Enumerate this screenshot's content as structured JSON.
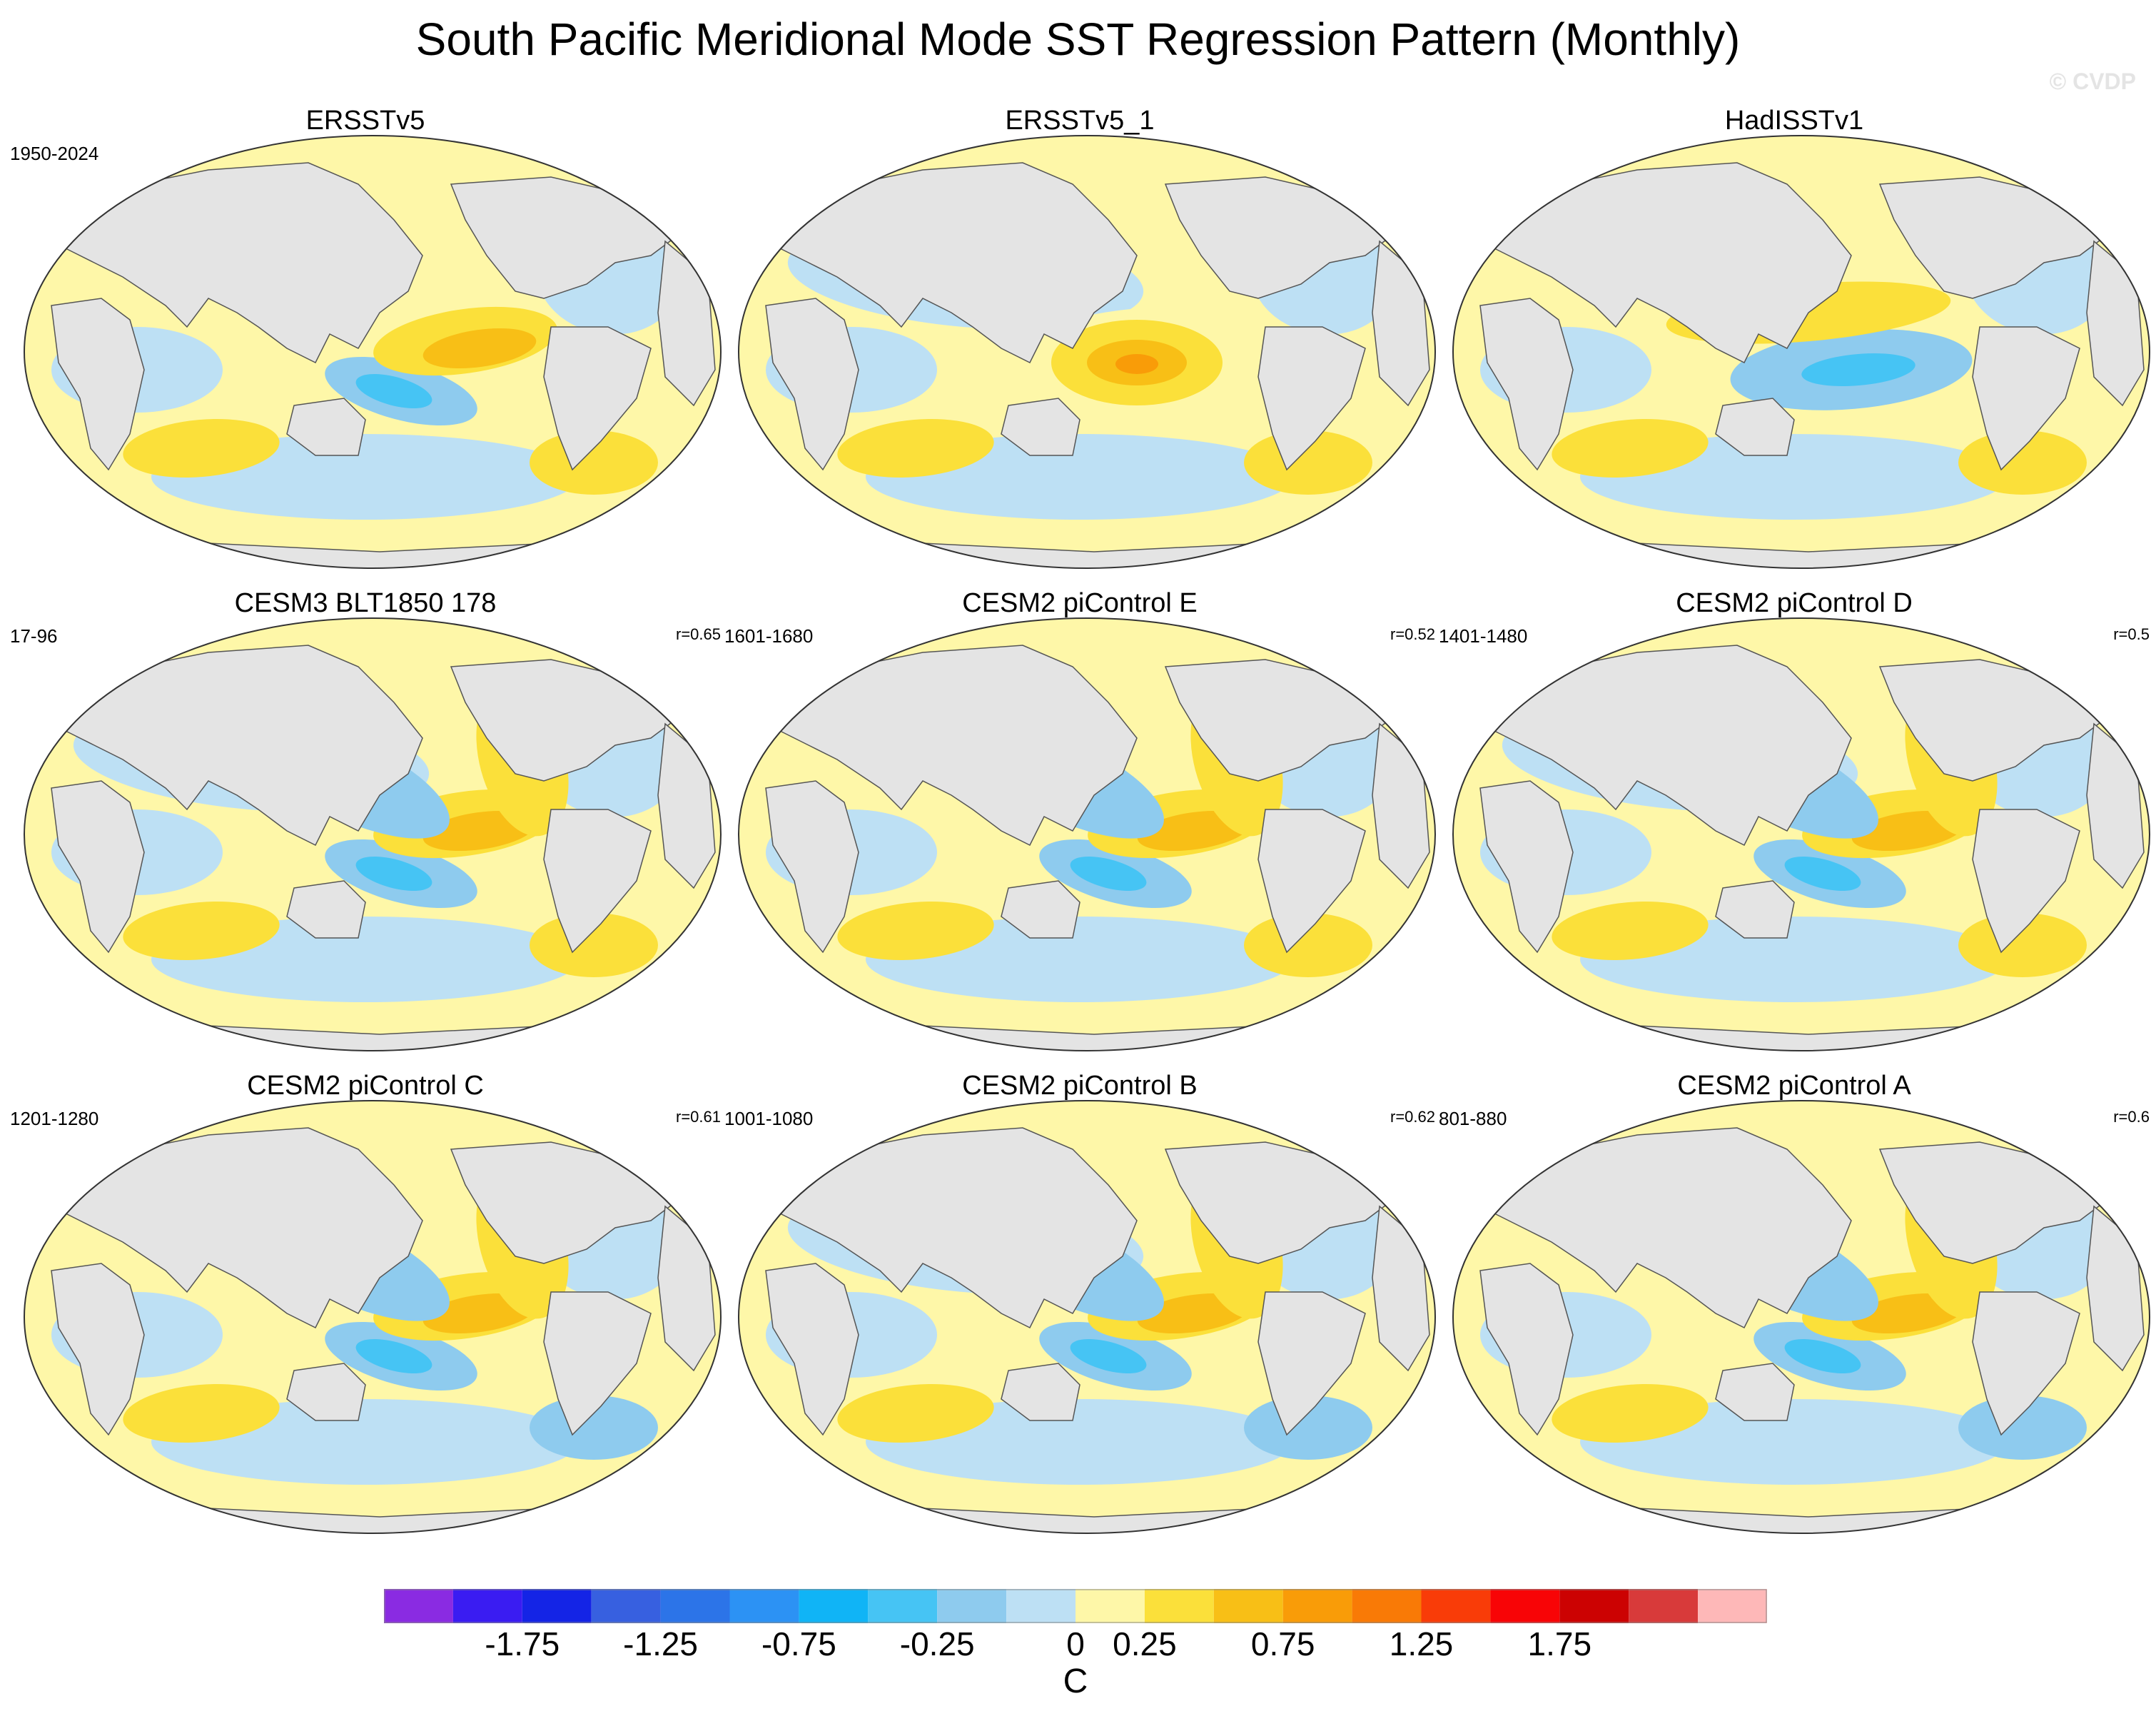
{
  "title": "South Pacific Meridional Mode SST Regression Pattern (Monthly)",
  "watermark": "© CVDP",
  "panels": [
    {
      "name": "ERSSTv5",
      "years": "1950-2024",
      "r": "",
      "variant": 0
    },
    {
      "name": "ERSSTv5_1",
      "years": "",
      "r": "",
      "variant": 1
    },
    {
      "name": "HadISSTv1",
      "years": "",
      "r": "",
      "variant": 2
    },
    {
      "name": "CESM3 BLT1850 178",
      "years": "17-96",
      "r": "r=0.65",
      "variant": 3
    },
    {
      "name": "CESM2 piControl E",
      "years": "1601-1680",
      "r": "r=0.52",
      "variant": 4
    },
    {
      "name": "CESM2 piControl D",
      "years": "1401-1480",
      "r": "r=0.5",
      "variant": 5
    },
    {
      "name": "CESM2 piControl C",
      "years": "1201-1280",
      "r": "r=0.61",
      "variant": 6
    },
    {
      "name": "CESM2 piControl B",
      "years": "1001-1080",
      "r": "r=0.62",
      "variant": 7
    },
    {
      "name": "CESM2 piControl A",
      "years": "801-880",
      "r": "r=0.6",
      "variant": 8
    }
  ],
  "colorbar": {
    "colors": [
      "#8a2be2",
      "#3a1cf2",
      "#1424e6",
      "#3760e0",
      "#2c74e8",
      "#2c92f4",
      "#10b4f6",
      "#46c4f4",
      "#8ecbee",
      "#bde0f4",
      "#fef7a8",
      "#fbe03a",
      "#f8bf16",
      "#f99c08",
      "#f97a06",
      "#f93c08",
      "#f80406",
      "#cc0202",
      "#d83a3a",
      "#feb8b8"
    ],
    "tick_labels": [
      "-1.75",
      "-1.25",
      "-0.75",
      "-0.25",
      "0",
      "0.25",
      "0.75",
      "1.25",
      "1.75"
    ],
    "tick_after_box": [
      2,
      4,
      6,
      8,
      10,
      11,
      13,
      15,
      17
    ],
    "unit": "C"
  },
  "map_colors": {
    "land": "#e4e4e4",
    "coast": "#555555",
    "neutral_warm": "#fef7a8",
    "neutral_cool": "#bde0f4",
    "cool_1": "#8ecbee",
    "cool_2": "#46c4f4",
    "warm_1": "#fbe03a",
    "warm_2": "#f8bf16",
    "warm_3": "#f99c08"
  }
}
